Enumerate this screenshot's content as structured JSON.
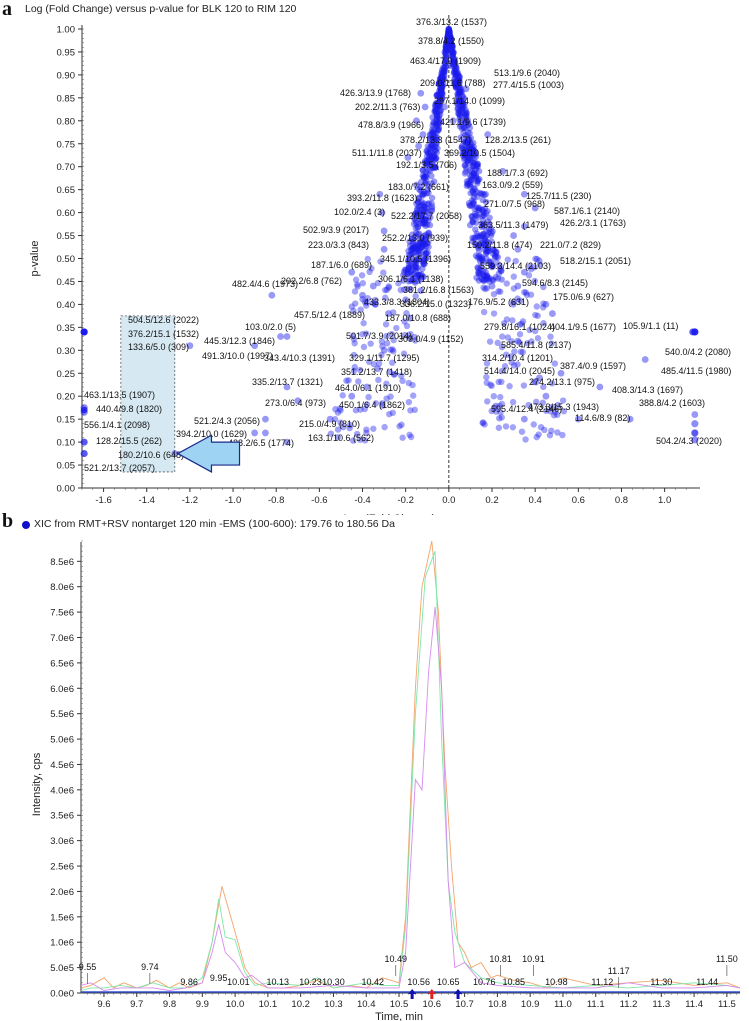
{
  "panel_a": {
    "letter": "a",
    "title": "Log (Fold Change) versus p-value for BLK 120 to RIM 120"
  },
  "panel_b": {
    "letter": "b",
    "title": "XIC from RMT+RSV nontarget 120 min -EMS (100-600): 179.76 to 180.56 Da",
    "legend_dot_color": "#1010cc"
  },
  "chart_data": [
    {
      "type": "scatter",
      "title": "Log (Fold Change) versus p-value for BLK 120 to RIM 120",
      "xlabel": "Log (Fold Change)",
      "ylabel": "p-value",
      "xlim": [
        -1.7,
        1.15
      ],
      "ylim": [
        0.0,
        1.0
      ],
      "xticks": [
        "-1.6",
        "-1.4",
        "-1.2",
        "-1.0",
        "-0.8",
        "-0.6",
        "-0.4",
        "-0.2",
        "0.0",
        "0.2",
        "0.4",
        "0.6",
        "0.8",
        "1.0"
      ],
      "yticks": [
        "0.00",
        "0.05",
        "0.10",
        "0.15",
        "0.20",
        "0.25",
        "0.30",
        "0.35",
        "0.40",
        "0.45",
        "0.50",
        "0.55",
        "0.60",
        "0.65",
        "0.70",
        "0.75",
        "0.80",
        "0.85",
        "0.90",
        "0.95",
        "1.00"
      ],
      "point_color": "#1a1aee",
      "vertical_reference_line_x": 0.0,
      "highlight_box": {
        "x0": -1.52,
        "x1": -1.27,
        "y0": 0.035,
        "y1": 0.375,
        "fill": "#d6e9f3"
      },
      "arrow": {
        "points_to": "180.2/10.6 (648)",
        "fill": "#9fd3f3",
        "stroke": "#1a2a8a"
      },
      "labels": [
        {
          "text": "376.3/13.2 (1537)",
          "x": 0.0,
          "y": 1.0
        },
        {
          "text": "378.8/4.2 (1550)",
          "x": 0.0,
          "y": 0.96
        },
        {
          "text": "463.4/17.9 (1909)",
          "x": 0.0,
          "y": 0.92
        },
        {
          "text": "513.1/9.6 (2040)",
          "x": 0.05,
          "y": 0.895
        },
        {
          "text": "209.0/11.6 (788)",
          "x": -0.03,
          "y": 0.875
        },
        {
          "text": "277.4/15.5 (1003)",
          "x": 0.08,
          "y": 0.87
        },
        {
          "text": "426.3/13.9 (1768)",
          "x": -0.13,
          "y": 0.86
        },
        {
          "text": "297.1/14.0 (1099)",
          "x": -0.02,
          "y": 0.83
        },
        {
          "text": "202.2/11.3 (763)",
          "x": -0.11,
          "y": 0.83
        },
        {
          "text": "478.8/3.9 (1966)",
          "x": -0.15,
          "y": 0.8
        },
        {
          "text": "421.1/9.6 (1739)",
          "x": 0.02,
          "y": 0.8
        },
        {
          "text": "378.2/13.3 (1547)",
          "x": -0.12,
          "y": 0.77
        },
        {
          "text": "128.2/13.5 (261)",
          "x": 0.18,
          "y": 0.77
        },
        {
          "text": "511.1/11.8 (2037)",
          "x": -0.14,
          "y": 0.745
        },
        {
          "text": "369.2/10.5 (1504)",
          "x": -0.08,
          "y": 0.745
        },
        {
          "text": "192.1/3.5 (706)",
          "x": -0.19,
          "y": 0.72
        },
        {
          "text": "188.1/7.3 (692)",
          "x": 0.25,
          "y": 0.69
        },
        {
          "text": "183.0/7.2 (661)",
          "x": -0.12,
          "y": 0.68
        },
        {
          "text": "163.0/9.2 (559)",
          "x": 0.1,
          "y": 0.68
        },
        {
          "text": "393.2/11.8 (1623)",
          "x": -0.15,
          "y": 0.66
        },
        {
          "text": "125.7/11.5 (230)",
          "x": 0.35,
          "y": 0.64
        },
        {
          "text": "102.0/2.4 (3)",
          "x": -0.32,
          "y": 0.64
        },
        {
          "text": "271.0/7.5 (968)",
          "x": 0.17,
          "y": 0.64
        },
        {
          "text": "522.2/17.7 (2058)",
          "x": -0.15,
          "y": 0.62
        },
        {
          "text": "587.1/6.1 (2140)",
          "x": 0.4,
          "y": 0.61
        },
        {
          "text": "502.9/3.9 (2017)",
          "x": -0.31,
          "y": 0.6
        },
        {
          "text": "363.5/11.3 (1479)",
          "x": 0.18,
          "y": 0.58
        },
        {
          "text": "426.2/3.1 (1763)",
          "x": 0.35,
          "y": 0.57
        },
        {
          "text": "252.2/13.0 (939)",
          "x": -0.15,
          "y": 0.58
        },
        {
          "text": "223.0/3.3 (843)",
          "x": -0.3,
          "y": 0.56
        },
        {
          "text": "150.2/11.8 (474)",
          "x": 0.15,
          "y": 0.55
        },
        {
          "text": "221.0/7.2 (829)",
          "x": 0.3,
          "y": 0.55
        },
        {
          "text": "345.1/10.5 (1396)",
          "x": -0.15,
          "y": 0.53
        },
        {
          "text": "187.1/6.0 (689)",
          "x": -0.3,
          "y": 0.52
        },
        {
          "text": "559.3/14.4 (2103)",
          "x": 0.18,
          "y": 0.52
        },
        {
          "text": "518.2/15.1 (2051)",
          "x": 0.32,
          "y": 0.52
        },
        {
          "text": "482.4/4.6 (1973)",
          "x": -0.82,
          "y": 0.42
        },
        {
          "text": "202.2/6.8 (762)",
          "x": -0.45,
          "y": 0.47
        },
        {
          "text": "306.1/6.1 (1138)",
          "x": -0.18,
          "y": 0.47
        },
        {
          "text": "594.6/8.3 (2145)",
          "x": 0.35,
          "y": 0.47
        },
        {
          "text": "381.2/16.8 (1563)",
          "x": -0.13,
          "y": 0.455
        },
        {
          "text": "175.0/6.9 (627)",
          "x": 0.32,
          "y": 0.44
        },
        {
          "text": "176.9/5.2 (631)",
          "x": 0.2,
          "y": 0.44
        },
        {
          "text": "433.3/8.3 (1804)",
          "x": -0.35,
          "y": 0.44
        },
        {
          "text": "336.2/15.0 (1323)",
          "x": -0.13,
          "y": 0.43
        },
        {
          "text": "457.5/12.4 (1889)",
          "x": -0.4,
          "y": 0.42
        },
        {
          "text": "187.0/10.8 (688)",
          "x": -0.2,
          "y": 0.41
        },
        {
          "text": "279.8/16.1 (1024)",
          "x": 0.3,
          "y": 0.405
        },
        {
          "text": "404.1/9.5 (1677)",
          "x": 0.45,
          "y": 0.4
        },
        {
          "text": "105.9/1.1 (11)",
          "x": 1.13,
          "y": 0.34
        },
        {
          "text": "103.0/2.0 (5)",
          "x": -0.75,
          "y": 0.33
        },
        {
          "text": "501.7/3.9 (2014)",
          "x": -0.28,
          "y": 0.38
        },
        {
          "text": "309.0/4.9 (1152)",
          "x": -0.18,
          "y": 0.37
        },
        {
          "text": "445.3/12.3 (1846)",
          "x": -0.78,
          "y": 0.33
        },
        {
          "text": "504.5/12.6 (2022)",
          "x": -1.69,
          "y": 0.34
        },
        {
          "text": "376.2/15.1 (1532)",
          "x": -1.69,
          "y": 0.34
        },
        {
          "text": "133.6/5.0 (309)",
          "x": -1.69,
          "y": 0.34
        },
        {
          "text": "491.3/10.0 (1997)",
          "x": -1.2,
          "y": 0.31
        },
        {
          "text": "343.4/10.3 (1391)",
          "x": -0.9,
          "y": 0.31
        },
        {
          "text": "329.1/11.7 (1295)",
          "x": -0.3,
          "y": 0.3
        },
        {
          "text": "585.4/11.8 (2137)",
          "x": 0.48,
          "y": 0.38
        },
        {
          "text": "314.2/10.4 (1201)",
          "x": 0.32,
          "y": 0.32
        },
        {
          "text": "351.2/13.7 (1418)",
          "x": -0.33,
          "y": 0.26
        },
        {
          "text": "540.0/4.2 (2080)",
          "x": 1.13,
          "y": 0.34
        },
        {
          "text": "514.4/14.0 (2045)",
          "x": 0.42,
          "y": 0.24
        },
        {
          "text": "387.4/0.9 (1597)",
          "x": 0.52,
          "y": 0.25
        },
        {
          "text": "485.4/11.5 (1980)",
          "x": 0.91,
          "y": 0.28
        },
        {
          "text": "335.2/13.7 (1321)",
          "x": -0.75,
          "y": 0.22
        },
        {
          "text": "464.0/6.1 (1910)",
          "x": -0.38,
          "y": 0.22
        },
        {
          "text": "274.2/13.1 (975)",
          "x": 0.45,
          "y": 0.2
        },
        {
          "text": "273.0/6.4 (973)",
          "x": -0.7,
          "y": 0.19
        },
        {
          "text": "450.1/6.4 (1862)",
          "x": -0.45,
          "y": 0.2
        },
        {
          "text": "408.3/14.3 (1697)",
          "x": 0.7,
          "y": 0.22
        },
        {
          "text": "463.1/13.5 (1907)",
          "x": -1.69,
          "y": 0.17
        },
        {
          "text": "440.4/9.8 (1820)",
          "x": -1.69,
          "y": 0.17
        },
        {
          "text": "556.1/4.1 (2098)",
          "x": -1.69,
          "y": 0.17
        },
        {
          "text": "595.4/12.4 (2146)",
          "x": 0.35,
          "y": 0.15
        },
        {
          "text": "473.3/15.3 (1943)",
          "x": 0.6,
          "y": 0.15
        },
        {
          "text": "388.8/4.2 (1603)",
          "x": 1.14,
          "y": 0.16
        },
        {
          "text": "521.2/4.3 (2056)",
          "x": -0.85,
          "y": 0.15
        },
        {
          "text": "215.0/4.9 (810)",
          "x": -0.55,
          "y": 0.15
        },
        {
          "text": "114.6/8.9 (82)",
          "x": 0.84,
          "y": 0.15
        },
        {
          "text": "394.2/10.0 (1629)",
          "x": -0.85,
          "y": 0.12
        },
        {
          "text": "428.2/6.5 (1774)",
          "x": -0.9,
          "y": 0.12
        },
        {
          "text": "163.1/10.6 (562)",
          "x": -0.75,
          "y": 0.1
        },
        {
          "text": "504.2/4.3 (2020)",
          "x": 1.14,
          "y": 0.12
        },
        {
          "text": "128.2/15.5 (262)",
          "x": -1.69,
          "y": 0.1
        },
        {
          "text": "180.2/10.6 (648)",
          "x": -1.27,
          "y": 0.075
        },
        {
          "text": "521.2/13.7 (2057)",
          "x": -1.69,
          "y": 0.075
        }
      ]
    },
    {
      "type": "line",
      "title": "XIC from RMT+RSV nontarget 120 min -EMS (100-600): 179.76 to 180.56 Da",
      "xlabel": "Time, min",
      "ylabel": "Intensity, cps",
      "xlim": [
        9.53,
        11.54
      ],
      "ylim": [
        0,
        8900000.0
      ],
      "xticks": [
        "9.6",
        "9.7",
        "9.8",
        "9.9",
        "10.0",
        "10.1",
        "10.2",
        "10.3",
        "10.4",
        "10.5",
        "10.6",
        "10.7",
        "10.8",
        "10.9",
        "11.0",
        "11.1",
        "11.2",
        "11.3",
        "11.4",
        "11.5"
      ],
      "yticks": [
        "0.0e0",
        "5.0e5",
        "1.0e6",
        "1.5e6",
        "2.0e6",
        "2.5e6",
        "3.0e6",
        "3.5e6",
        "4.0e6",
        "4.5e6",
        "5.0e6",
        "5.5e6",
        "6.0e6",
        "6.5e6",
        "7.0e6",
        "7.5e6",
        "8.0e6",
        "8.5e6"
      ],
      "peak_labels": [
        "9.55",
        "9.74",
        "9.86",
        "9.95",
        "10.01",
        "10.13",
        "10.23",
        "10.30",
        "10.42",
        "10.49",
        "10.56",
        "10.65",
        "10.76",
        "10.81",
        "10.85",
        "10.91",
        "10.98",
        "11.12",
        "11.17",
        "11.30",
        "11.44",
        "11.50"
      ],
      "markers": [
        {
          "x": 10.54,
          "color": "#1010aa"
        },
        {
          "x": 10.6,
          "color": "#dd2222"
        },
        {
          "x": 10.68,
          "color": "#1010aa"
        }
      ],
      "series": [
        {
          "name": "orange",
          "color": "#f4a46a",
          "x": [
            9.53,
            9.56,
            9.6,
            9.63,
            9.66,
            9.7,
            9.73,
            9.76,
            9.8,
            9.83,
            9.86,
            9.9,
            9.93,
            9.96,
            10.0,
            10.03,
            10.06,
            10.1,
            10.15,
            10.2,
            10.25,
            10.3,
            10.35,
            10.4,
            10.45,
            10.5,
            10.52,
            10.55,
            10.57,
            10.6,
            10.62,
            10.64,
            10.66,
            10.68,
            10.7,
            10.72,
            10.75,
            10.78,
            10.8,
            10.85,
            10.9,
            10.95,
            11.0,
            11.1,
            11.2,
            11.3,
            11.4,
            11.5,
            11.54
          ],
          "y": [
            100000.0,
            150000.0,
            300000.0,
            100000.0,
            200000.0,
            100000.0,
            150000.0,
            250000.0,
            100000.0,
            200000.0,
            100000.0,
            200000.0,
            1000000.0,
            2100000.0,
            1200000.0,
            500000.0,
            200000.0,
            100000.0,
            100000.0,
            150000.0,
            250000.0,
            100000.0,
            150000.0,
            100000.0,
            300000.0,
            200000.0,
            1500000.0,
            6000000.0,
            8000000.0,
            8900000.0,
            7500000.0,
            4500000.0,
            2500000.0,
            1000000.0,
            800000.0,
            500000.0,
            600000.0,
            300000.0,
            350000.0,
            250000.0,
            200000.0,
            100000.0,
            300000.0,
            150000.0,
            200000.0,
            250000.0,
            150000.0,
            200000.0,
            100000.0
          ]
        },
        {
          "name": "green",
          "color": "#7de8a8",
          "x": [
            9.53,
            9.56,
            9.6,
            9.65,
            9.7,
            9.75,
            9.8,
            9.85,
            9.9,
            9.93,
            9.95,
            9.97,
            10.0,
            10.03,
            10.06,
            10.1,
            10.2,
            10.25,
            10.3,
            10.4,
            10.45,
            10.5,
            10.52,
            10.55,
            10.58,
            10.61,
            10.63,
            10.65,
            10.67,
            10.7,
            10.75,
            10.8,
            10.9,
            11.0,
            11.1,
            11.2,
            11.3,
            11.4,
            11.5,
            11.54
          ],
          "y": [
            50000.0,
            100000.0,
            100000.0,
            150000.0,
            100000.0,
            200000.0,
            100000.0,
            100000.0,
            300000.0,
            1000000.0,
            1850000.0,
            1100000.0,
            1050000.0,
            400000.0,
            150000.0,
            200000.0,
            150000.0,
            300000.0,
            100000.0,
            200000.0,
            150000.0,
            150000.0,
            1300000.0,
            5500000.0,
            8200000.0,
            8700000.0,
            5000000.0,
            2200000.0,
            1200000.0,
            600000.0,
            300000.0,
            200000.0,
            150000.0,
            100000.0,
            150000.0,
            100000.0,
            150000.0,
            200000.0,
            150000.0,
            100000.0
          ]
        },
        {
          "name": "violet",
          "color": "#d68bf0",
          "x": [
            9.53,
            9.56,
            9.6,
            9.65,
            9.7,
            9.75,
            9.8,
            9.85,
            9.9,
            9.93,
            9.95,
            9.97,
            10.0,
            10.03,
            10.05,
            10.1,
            10.2,
            10.3,
            10.4,
            10.45,
            10.5,
            10.52,
            10.55,
            10.57,
            10.59,
            10.61,
            10.63,
            10.65,
            10.67,
            10.7,
            10.75,
            10.8,
            10.9,
            11.0,
            11.1,
            11.2,
            11.3,
            11.4,
            11.5,
            11.54
          ],
          "y": [
            150000.0,
            200000.0,
            50000.0,
            100000.0,
            100000.0,
            100000.0,
            50000.0,
            100000.0,
            200000.0,
            800000.0,
            1350000.0,
            800000.0,
            600000.0,
            300000.0,
            350000.0,
            100000.0,
            100000.0,
            150000.0,
            100000.0,
            100000.0,
            100000.0,
            800000.0,
            4200000.0,
            4000000.0,
            6300000.0,
            7600000.0,
            6000000.0,
            2200000.0,
            500000.0,
            600000.0,
            200000.0,
            150000.0,
            100000.0,
            100000.0,
            100000.0,
            200000.0,
            100000.0,
            100000.0,
            150000.0,
            100000.0
          ]
        },
        {
          "name": "baseline-blue",
          "color": "#3050d0",
          "x": [
            9.53,
            11.54
          ],
          "y": [
            20000.0,
            20000.0
          ]
        }
      ]
    }
  ]
}
